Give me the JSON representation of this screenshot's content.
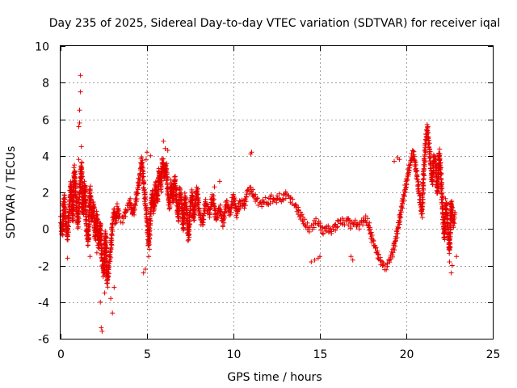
{
  "chart_data": {
    "type": "scatter",
    "title": "Day 235 of 2025, Sidereal Day-to-day VTEC variation (SDTVAR) for receiver iqal",
    "xlabel": "GPS time / hours",
    "ylabel": "SDTVAR / TECUs",
    "xlim": [
      0,
      25
    ],
    "ylim": [
      -6,
      10
    ],
    "xticks": [
      "0",
      "5",
      "10",
      "15",
      "20",
      "25"
    ],
    "yticks": [
      "-6",
      "-4",
      "-2",
      "0",
      "2",
      "4",
      "6",
      "8",
      "10"
    ],
    "grid": true,
    "marker": "+",
    "series": [
      {
        "name": "SDTVAR",
        "color": "#e60000",
        "trace": [
          [
            0.0,
            0.5
          ],
          [
            0.1,
            -0.3
          ],
          [
            0.2,
            1.8
          ],
          [
            0.3,
            0.2
          ],
          [
            0.4,
            -0.5
          ],
          [
            0.5,
            1.0
          ],
          [
            0.6,
            2.5
          ],
          [
            0.7,
            0.5
          ],
          [
            0.8,
            3.2
          ],
          [
            0.9,
            1.5
          ],
          [
            1.0,
            0.2
          ],
          [
            1.1,
            2.0
          ],
          [
            1.2,
            3.5
          ],
          [
            1.3,
            0.8
          ],
          [
            1.4,
            2.5
          ],
          [
            1.5,
            0.0
          ],
          [
            1.6,
            -0.8
          ],
          [
            1.7,
            2.2
          ],
          [
            1.8,
            0.5
          ],
          [
            1.9,
            1.5
          ],
          [
            2.0,
            -0.5
          ],
          [
            2.1,
            0.8
          ],
          [
            2.2,
            -1.0
          ],
          [
            2.3,
            0.3
          ],
          [
            2.4,
            -1.8
          ],
          [
            2.5,
            -2.5
          ],
          [
            2.6,
            -0.2
          ],
          [
            2.7,
            -3.0
          ],
          [
            2.8,
            -2.0
          ],
          [
            2.9,
            -1.2
          ],
          [
            3.0,
            0.3
          ],
          [
            3.1,
            1.0
          ],
          [
            3.2,
            0.4
          ],
          [
            3.3,
            1.2
          ],
          [
            3.4,
            0.6
          ],
          [
            3.6,
            0.5
          ],
          [
            3.8,
            1.0
          ],
          [
            4.0,
            1.5
          ],
          [
            4.2,
            0.8
          ],
          [
            4.4,
            1.8
          ],
          [
            4.6,
            3.0
          ],
          [
            4.7,
            3.8
          ],
          [
            4.8,
            2.5
          ],
          [
            4.9,
            1.5
          ],
          [
            5.0,
            0.5
          ],
          [
            5.1,
            -1.0
          ],
          [
            5.2,
            0.8
          ],
          [
            5.3,
            2.0
          ],
          [
            5.4,
            1.0
          ],
          [
            5.5,
            2.5
          ],
          [
            5.6,
            1.5
          ],
          [
            5.7,
            3.2
          ],
          [
            5.8,
            2.2
          ],
          [
            5.9,
            3.8
          ],
          [
            6.0,
            2.8
          ],
          [
            6.1,
            3.5
          ],
          [
            6.2,
            2.0
          ],
          [
            6.3,
            1.2
          ],
          [
            6.4,
            2.5
          ],
          [
            6.5,
            1.5
          ],
          [
            6.6,
            2.8
          ],
          [
            6.7,
            1.8
          ],
          [
            6.8,
            0.5
          ],
          [
            6.9,
            2.2
          ],
          [
            7.0,
            1.5
          ],
          [
            7.1,
            0.0
          ],
          [
            7.2,
            1.8
          ],
          [
            7.3,
            0.8
          ],
          [
            7.4,
            -0.5
          ],
          [
            7.5,
            1.2
          ],
          [
            7.6,
            2.0
          ],
          [
            7.7,
            0.5
          ],
          [
            7.8,
            1.5
          ],
          [
            7.9,
            2.2
          ],
          [
            8.0,
            1.0
          ],
          [
            8.2,
            0.2
          ],
          [
            8.4,
            1.5
          ],
          [
            8.6,
            0.8
          ],
          [
            8.8,
            1.8
          ],
          [
            9.0,
            0.5
          ],
          [
            9.2,
            1.2
          ],
          [
            9.4,
            0.3
          ],
          [
            9.6,
            1.5
          ],
          [
            9.8,
            0.8
          ],
          [
            10.0,
            1.8
          ],
          [
            10.2,
            0.8
          ],
          [
            10.4,
            1.5
          ],
          [
            10.6,
            1.2
          ],
          [
            10.8,
            2.0
          ],
          [
            11.0,
            2.2
          ],
          [
            11.2,
            1.8
          ],
          [
            11.4,
            1.5
          ],
          [
            11.6,
            1.3
          ],
          [
            11.8,
            1.6
          ],
          [
            12.0,
            1.4
          ],
          [
            12.2,
            1.7
          ],
          [
            12.4,
            1.5
          ],
          [
            12.6,
            1.8
          ],
          [
            12.8,
            1.6
          ],
          [
            13.0,
            1.9
          ],
          [
            13.2,
            1.7
          ],
          [
            13.4,
            1.5
          ],
          [
            13.6,
            1.3
          ],
          [
            13.8,
            0.9
          ],
          [
            14.0,
            0.5
          ],
          [
            14.2,
            0.2
          ],
          [
            14.4,
            0.0
          ],
          [
            14.6,
            0.2
          ],
          [
            14.8,
            0.4
          ],
          [
            15.0,
            0.2
          ],
          [
            15.2,
            -0.1
          ],
          [
            15.4,
            0.1
          ],
          [
            15.6,
            -0.2
          ],
          [
            15.8,
            0.0
          ],
          [
            16.0,
            0.3
          ],
          [
            16.2,
            0.5
          ],
          [
            16.4,
            0.3
          ],
          [
            16.6,
            0.5
          ],
          [
            16.8,
            0.2
          ],
          [
            17.0,
            0.4
          ],
          [
            17.2,
            0.1
          ],
          [
            17.4,
            0.3
          ],
          [
            17.6,
            0.6
          ],
          [
            17.8,
            0.3
          ],
          [
            18.0,
            -0.5
          ],
          [
            18.2,
            -1.0
          ],
          [
            18.4,
            -1.5
          ],
          [
            18.6,
            -1.9
          ],
          [
            18.8,
            -2.1
          ],
          [
            19.0,
            -1.8
          ],
          [
            19.2,
            -1.3
          ],
          [
            19.4,
            -0.5
          ],
          [
            19.6,
            0.5
          ],
          [
            19.8,
            1.5
          ],
          [
            20.0,
            2.5
          ],
          [
            20.2,
            3.5
          ],
          [
            20.4,
            4.2
          ],
          [
            20.6,
            3.0
          ],
          [
            20.8,
            1.5
          ],
          [
            20.9,
            0.8
          ],
          [
            21.0,
            3.0
          ],
          [
            21.1,
            4.5
          ],
          [
            21.2,
            5.5
          ],
          [
            21.3,
            4.8
          ],
          [
            21.4,
            3.5
          ],
          [
            21.5,
            2.5
          ],
          [
            21.6,
            4.0
          ],
          [
            21.7,
            3.5
          ],
          [
            21.8,
            2.0
          ],
          [
            21.9,
            4.2
          ],
          [
            22.0,
            3.0
          ],
          [
            22.1,
            1.0
          ],
          [
            22.2,
            -0.5
          ],
          [
            22.3,
            1.5
          ],
          [
            22.4,
            0.0
          ],
          [
            22.5,
            -1.2
          ],
          [
            22.6,
            1.5
          ],
          [
            22.7,
            0.2
          ],
          [
            22.8,
            0.8
          ]
        ],
        "outliers": [
          [
            1.15,
            8.4
          ],
          [
            1.15,
            7.5
          ],
          [
            1.1,
            6.5
          ],
          [
            1.1,
            5.8
          ],
          [
            1.05,
            5.6
          ],
          [
            1.2,
            4.5
          ],
          [
            1.05,
            3.8
          ],
          [
            0.8,
            3.5
          ],
          [
            2.35,
            -5.4
          ],
          [
            2.4,
            -5.6
          ],
          [
            2.3,
            -4.0
          ],
          [
            2.55,
            -3.5
          ],
          [
            3.0,
            -4.6
          ],
          [
            2.9,
            -3.8
          ],
          [
            3.1,
            -3.2
          ],
          [
            2.1,
            -1.3
          ],
          [
            1.7,
            -1.5
          ],
          [
            0.4,
            -1.6
          ],
          [
            4.8,
            -2.4
          ],
          [
            4.9,
            -2.2
          ],
          [
            5.1,
            -1.5
          ],
          [
            5.0,
            4.2
          ],
          [
            5.2,
            4.0
          ],
          [
            4.95,
            3.8
          ],
          [
            5.95,
            4.8
          ],
          [
            6.05,
            4.4
          ],
          [
            6.2,
            4.3
          ],
          [
            11.0,
            4.1
          ],
          [
            11.05,
            4.2
          ],
          [
            9.2,
            2.6
          ],
          [
            8.9,
            2.3
          ],
          [
            14.5,
            -1.8
          ],
          [
            14.7,
            -1.7
          ],
          [
            14.9,
            -1.6
          ],
          [
            15.0,
            -1.5
          ],
          [
            16.8,
            -1.5
          ],
          [
            16.9,
            -1.7
          ],
          [
            19.5,
            3.9
          ],
          [
            19.6,
            3.8
          ],
          [
            19.3,
            3.7
          ],
          [
            21.2,
            5.7
          ],
          [
            21.25,
            5.6
          ],
          [
            22.6,
            -2.4
          ],
          [
            22.65,
            -2.0
          ],
          [
            22.9,
            -1.5
          ],
          [
            22.5,
            -1.8
          ]
        ]
      }
    ]
  }
}
